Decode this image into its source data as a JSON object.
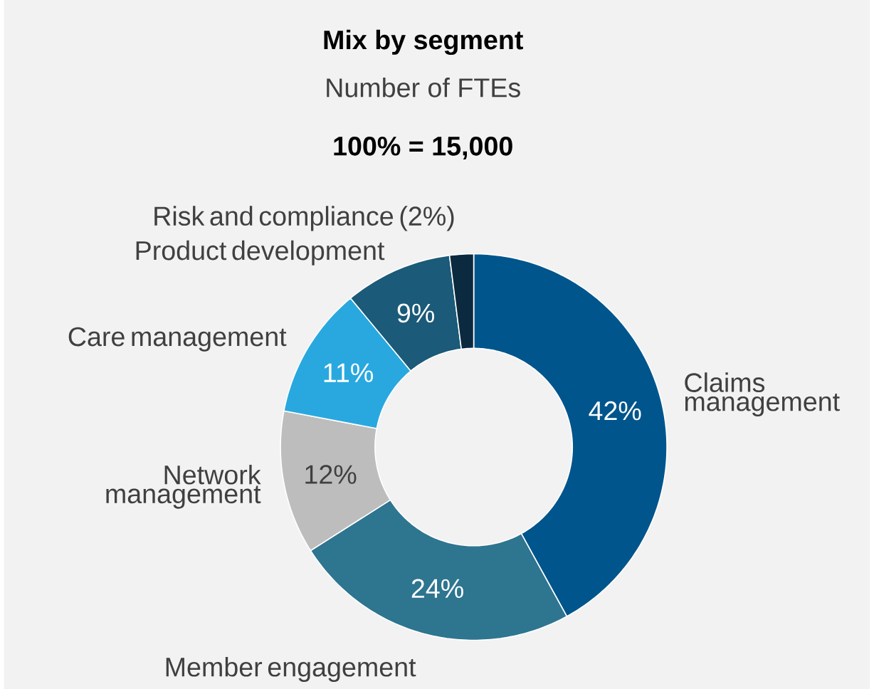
{
  "chart_data": {
    "type": "donut",
    "title": "Mix by segment",
    "subtitle": "Number of FTEs",
    "annotations": [
      "100% = 15,000"
    ],
    "categories": [
      "Claims management",
      "Member engagement",
      "Network management",
      "Care management",
      "Product development",
      "Risk and compliance (2%)"
    ],
    "values": [
      42,
      24,
      12,
      11,
      9,
      2
    ],
    "value_labels": [
      "42%",
      "24%",
      "12%",
      "11%",
      "9%",
      null
    ],
    "colors": [
      "#00558c",
      "#2e7590",
      "#bdbdbd",
      "#29a8e0",
      "#1b5a78",
      "#0b2a3f"
    ]
  }
}
